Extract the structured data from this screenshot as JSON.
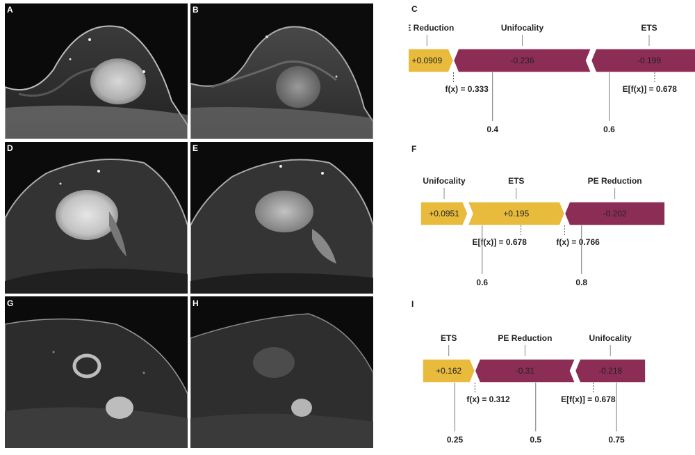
{
  "figure": {
    "image_panels": [
      {
        "id": "A",
        "letter": "A"
      },
      {
        "id": "B",
        "letter": "B"
      },
      {
        "id": "D",
        "letter": "D"
      },
      {
        "id": "E",
        "letter": "E"
      },
      {
        "id": "G",
        "letter": "G"
      },
      {
        "id": "H",
        "letter": "H"
      }
    ]
  },
  "chart_data": [
    {
      "panel": "C",
      "type": "force",
      "xlim": [
        0.28,
        0.74
      ],
      "base_value": 0.678,
      "output_value": 0.333,
      "base_label": "E[f(x)] = 0.678",
      "output_label": "f(x) = 0.333",
      "ticks": [
        0.4,
        0.6
      ],
      "tick_labels": [
        "0.4",
        "0.6"
      ],
      "segments": [
        {
          "feature": "PE Reduction",
          "value": 0.0909,
          "label": "+0.0909",
          "start": 0.2421,
          "end": 0.333,
          "color": "#e8bb3d"
        },
        {
          "feature": "Unifocality",
          "value": -0.236,
          "label": "-0.236",
          "start": 0.333,
          "end": 0.569,
          "color": "#8c2d55"
        },
        {
          "feature": "ETS",
          "value": -0.199,
          "label": "-0.199",
          "start": 0.569,
          "end": 0.768,
          "color": "#8c2d55"
        }
      ]
    },
    {
      "panel": "F",
      "type": "force",
      "xlim": [
        0.48,
        1.02
      ],
      "base_value": 0.678,
      "output_value": 0.766,
      "base_label": "E[f(x)] = 0.678",
      "output_label": "f(x) = 0.766",
      "ticks": [
        0.6,
        0.8
      ],
      "tick_labels": [
        "0.6",
        "0.8"
      ],
      "segments": [
        {
          "feature": "Unifocality",
          "value": 0.0951,
          "label": "+0.0951",
          "start": 0.4759,
          "end": 0.571,
          "color": "#e8bb3d"
        },
        {
          "feature": "ETS",
          "value": 0.195,
          "label": "+0.195",
          "start": 0.571,
          "end": 0.766,
          "color": "#e8bb3d"
        },
        {
          "feature": "PE Reduction",
          "value": -0.202,
          "label": "-0.202",
          "start": 0.766,
          "end": 0.968,
          "color": "#8c2d55"
        }
      ]
    },
    {
      "panel": "I",
      "type": "force",
      "xlim": [
        0.15,
        0.98
      ],
      "base_value": 0.678,
      "output_value": 0.312,
      "base_label": "E[f(x)] = 0.678",
      "output_label": "f(x) = 0.312",
      "ticks": [
        0.25,
        0.5,
        0.75
      ],
      "tick_labels": [
        "0.25",
        "0.5",
        "0.75"
      ],
      "segments": [
        {
          "feature": "ETS",
          "value": 0.162,
          "label": "+0.162",
          "start": 0.15,
          "end": 0.312,
          "color": "#e8bb3d"
        },
        {
          "feature": "PE Reduction",
          "value": -0.31,
          "label": "-0.31",
          "start": 0.312,
          "end": 0.622,
          "color": "#8c2d55"
        },
        {
          "feature": "Unifocality",
          "value": -0.218,
          "label": "-0.218",
          "start": 0.622,
          "end": 0.84,
          "color": "#8c2d55"
        }
      ]
    }
  ],
  "panel_letters": {
    "C": "C",
    "F": "F",
    "I": "I"
  }
}
